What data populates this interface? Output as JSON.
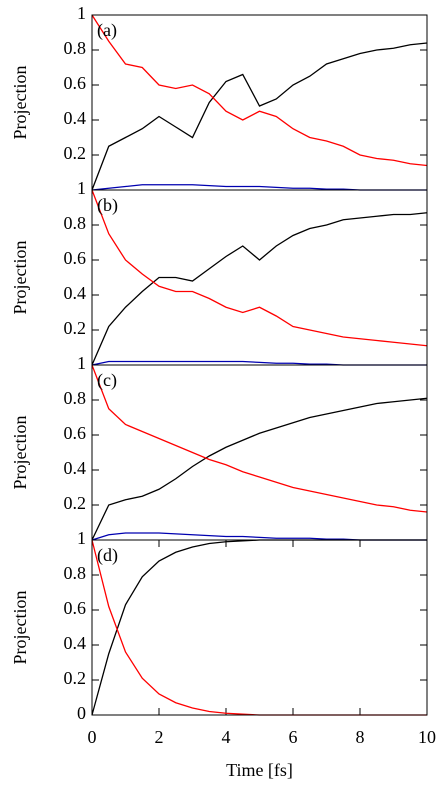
{
  "chart_data": [
    {
      "type": "line",
      "label": "(a)",
      "ylabel": "Projection",
      "x": [
        0,
        0.5,
        1,
        1.5,
        2,
        2.5,
        3,
        3.5,
        4,
        4.5,
        5,
        5.5,
        6,
        6.5,
        7,
        7.5,
        8,
        8.5,
        9,
        9.5,
        10
      ],
      "series": [
        {
          "color": "#000000",
          "values": [
            0,
            0.25,
            0.3,
            0.35,
            0.42,
            0.36,
            0.3,
            0.5,
            0.62,
            0.66,
            0.48,
            0.52,
            0.6,
            0.65,
            0.72,
            0.75,
            0.78,
            0.8,
            0.81,
            0.83,
            0.84
          ]
        },
        {
          "color": "#ff0000",
          "values": [
            1,
            0.85,
            0.72,
            0.7,
            0.6,
            0.58,
            0.6,
            0.55,
            0.45,
            0.4,
            0.45,
            0.42,
            0.35,
            0.3,
            0.28,
            0.25,
            0.2,
            0.18,
            0.17,
            0.15,
            0.14
          ]
        },
        {
          "color": "#0000b0",
          "values": [
            0,
            0.01,
            0.02,
            0.03,
            0.03,
            0.03,
            0.03,
            0.025,
            0.02,
            0.02,
            0.02,
            0.015,
            0.01,
            0.01,
            0.005,
            0.005,
            0,
            0,
            0,
            0,
            0
          ]
        }
      ],
      "xlim": [
        0,
        10
      ],
      "ylim": [
        0,
        1
      ],
      "yticks": [
        0.2,
        0.4,
        0.6,
        0.8,
        1
      ]
    },
    {
      "type": "line",
      "label": "(b)",
      "ylabel": "Projection",
      "x": [
        0,
        0.5,
        1,
        1.5,
        2,
        2.5,
        3,
        3.5,
        4,
        4.5,
        5,
        5.5,
        6,
        6.5,
        7,
        7.5,
        8,
        8.5,
        9,
        9.5,
        10
      ],
      "series": [
        {
          "color": "#000000",
          "values": [
            0,
            0.22,
            0.33,
            0.42,
            0.5,
            0.5,
            0.48,
            0.55,
            0.62,
            0.68,
            0.6,
            0.68,
            0.74,
            0.78,
            0.8,
            0.83,
            0.84,
            0.85,
            0.86,
            0.86,
            0.87
          ]
        },
        {
          "color": "#ff0000",
          "values": [
            1,
            0.75,
            0.6,
            0.52,
            0.45,
            0.42,
            0.42,
            0.38,
            0.33,
            0.3,
            0.33,
            0.28,
            0.22,
            0.2,
            0.18,
            0.16,
            0.15,
            0.14,
            0.13,
            0.12,
            0.11
          ]
        },
        {
          "color": "#0000b0",
          "values": [
            0,
            0.02,
            0.02,
            0.02,
            0.02,
            0.02,
            0.02,
            0.02,
            0.02,
            0.02,
            0.015,
            0.01,
            0.01,
            0.005,
            0.005,
            0,
            0,
            0,
            0,
            0,
            0
          ]
        }
      ],
      "xlim": [
        0,
        10
      ],
      "ylim": [
        0,
        1
      ],
      "yticks": [
        0.2,
        0.4,
        0.6,
        0.8,
        1
      ]
    },
    {
      "type": "line",
      "label": "(c)",
      "ylabel": "Projection",
      "x": [
        0,
        0.5,
        1,
        1.5,
        2,
        2.5,
        3,
        3.5,
        4,
        4.5,
        5,
        5.5,
        6,
        6.5,
        7,
        7.5,
        8,
        8.5,
        9,
        9.5,
        10
      ],
      "series": [
        {
          "color": "#000000",
          "values": [
            0,
            0.2,
            0.23,
            0.25,
            0.29,
            0.35,
            0.42,
            0.48,
            0.53,
            0.57,
            0.61,
            0.64,
            0.67,
            0.7,
            0.72,
            0.74,
            0.76,
            0.78,
            0.79,
            0.8,
            0.81
          ]
        },
        {
          "color": "#ff0000",
          "values": [
            1,
            0.75,
            0.66,
            0.62,
            0.58,
            0.54,
            0.5,
            0.46,
            0.43,
            0.39,
            0.36,
            0.33,
            0.3,
            0.28,
            0.26,
            0.24,
            0.22,
            0.2,
            0.19,
            0.17,
            0.16
          ]
        },
        {
          "color": "#0000b0",
          "values": [
            0,
            0.03,
            0.04,
            0.04,
            0.04,
            0.035,
            0.03,
            0.025,
            0.02,
            0.02,
            0.015,
            0.01,
            0.01,
            0.01,
            0.005,
            0.005,
            0,
            0,
            0,
            0,
            0
          ]
        }
      ],
      "xlim": [
        0,
        10
      ],
      "ylim": [
        0,
        1
      ],
      "yticks": [
        0.2,
        0.4,
        0.6,
        0.8,
        1
      ]
    },
    {
      "type": "line",
      "label": "(d)",
      "ylabel": "Projection",
      "xlabel": "Time [fs]",
      "x": [
        0,
        0.5,
        1,
        1.5,
        2,
        2.5,
        3,
        3.5,
        4,
        4.5,
        5,
        5.5,
        6,
        6.5,
        7,
        7.5,
        8,
        8.5,
        9,
        9.5,
        10
      ],
      "series": [
        {
          "color": "#000000",
          "values": [
            0,
            0.35,
            0.63,
            0.79,
            0.88,
            0.93,
            0.96,
            0.98,
            0.99,
            0.995,
            1,
            1,
            1,
            1,
            1,
            1,
            1,
            1,
            1,
            1,
            1
          ]
        },
        {
          "color": "#ff0000",
          "values": [
            1,
            0.62,
            0.36,
            0.21,
            0.12,
            0.07,
            0.04,
            0.02,
            0.01,
            0.005,
            0,
            0,
            0,
            0,
            0,
            0,
            0,
            0,
            0,
            0,
            0
          ]
        }
      ],
      "xlim": [
        0,
        10
      ],
      "ylim": [
        0,
        1
      ],
      "yticks": [
        0,
        0.2,
        0.4,
        0.6,
        0.8,
        1
      ],
      "xticks": [
        0,
        2,
        4,
        6,
        8,
        10
      ]
    }
  ]
}
